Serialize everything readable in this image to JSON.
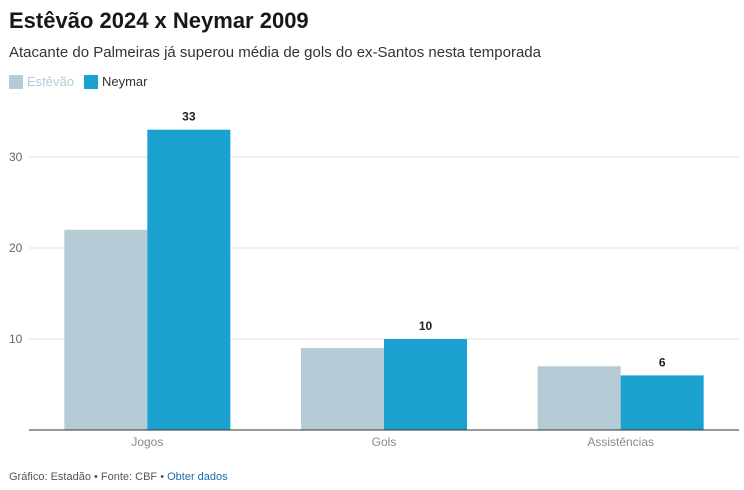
{
  "title": "Estêvão 2024 x Neymar 2009",
  "subtitle": "Atacante do Palmeiras já superou média de gols do ex-Santos nesta temporada",
  "footer": {
    "credit": "Gráfico: Estadão • Fonte: CBF • ",
    "link": "Obter dados"
  },
  "colors": {
    "estevao": "#b5cbd6",
    "neymar": "#1ba1cf",
    "estevao_legend_text": "#b5cbd6",
    "neymar_legend_text": "#333333"
  },
  "chart_data": {
    "type": "bar",
    "title": "Estêvão 2024 x Neymar 2009",
    "subtitle": "Atacante do Palmeiras já superou média de gols do ex-Santos nesta temporada",
    "categories": [
      "Jogos",
      "Gols",
      "Assistências"
    ],
    "series": [
      {
        "name": "Estêvão",
        "values": [
          22,
          9,
          7
        ],
        "color": "#b5cbd6",
        "labels": false
      },
      {
        "name": "Neymar",
        "values": [
          33,
          10,
          6
        ],
        "color": "#1ba1cf",
        "labels": true
      }
    ],
    "ylim": [
      0,
      35
    ],
    "yticks": [
      10,
      20,
      30
    ],
    "grid": true,
    "legend": "top-left"
  }
}
